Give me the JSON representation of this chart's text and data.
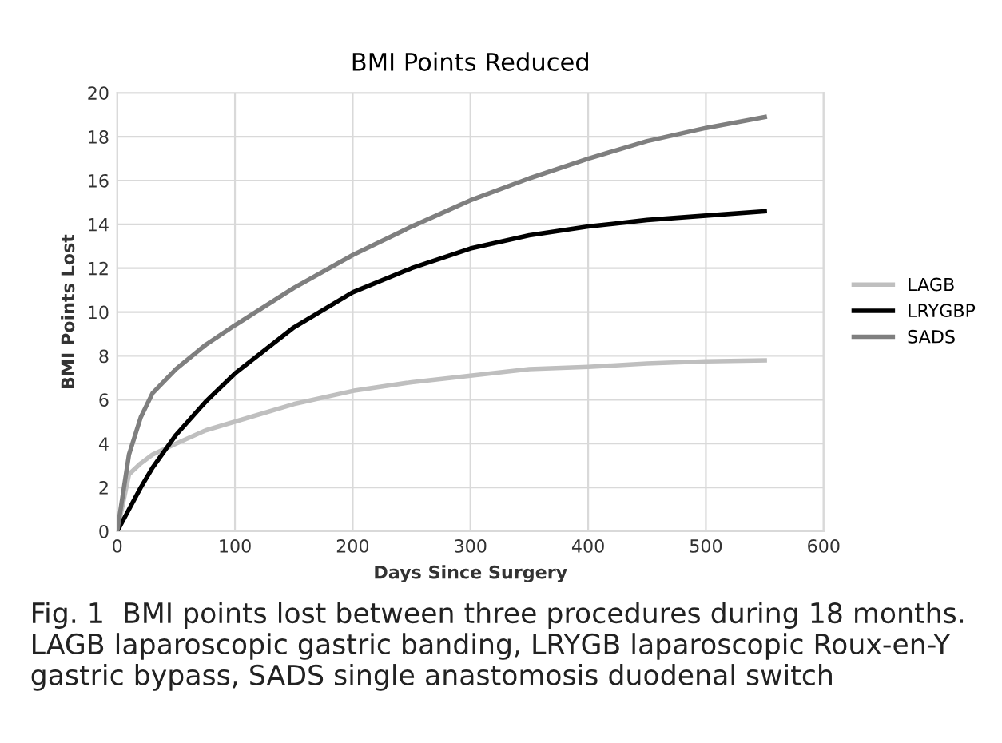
{
  "chart_data": {
    "type": "line",
    "title": "BMI Points Reduced",
    "xlabel": "Days Since Surgery",
    "ylabel": "BMI Points Lost",
    "x": [
      0,
      10,
      20,
      30,
      50,
      75,
      100,
      150,
      200,
      250,
      300,
      350,
      400,
      450,
      500,
      550
    ],
    "series": [
      {
        "name": "LAGB",
        "color": "#bfbfbf",
        "values": [
          0,
          2.6,
          3.1,
          3.5,
          4.0,
          4.6,
          5.0,
          5.8,
          6.4,
          6.8,
          7.1,
          7.4,
          7.5,
          7.65,
          7.75,
          7.8
        ]
      },
      {
        "name": "LRYGBP",
        "color": "#000000",
        "values": [
          0,
          1.0,
          2.0,
          2.9,
          4.4,
          5.9,
          7.2,
          9.3,
          10.9,
          12.0,
          12.9,
          13.5,
          13.9,
          14.2,
          14.4,
          14.6
        ]
      },
      {
        "name": "SADS",
        "color": "#7f7f7f",
        "values": [
          0,
          3.5,
          5.2,
          6.3,
          7.4,
          8.5,
          9.4,
          11.1,
          12.6,
          13.9,
          15.1,
          16.1,
          17.0,
          17.8,
          18.4,
          18.9
        ]
      }
    ],
    "xlim": [
      0,
      600
    ],
    "xticks": [
      0,
      100,
      200,
      300,
      400,
      500,
      600
    ],
    "ylim": [
      0,
      20
    ],
    "yticks": [
      0,
      2,
      4,
      6,
      8,
      10,
      12,
      14,
      16,
      18,
      20
    ],
    "grid": true,
    "legend": "right",
    "marker": "none",
    "line_style": "solid",
    "annotations": [
      "Fig. 1  BMI points lost between three procedures during 18 months. LAGB laparoscopic gastric banding, LRYGB laparoscopic Roux-en-Y gastric bypass, SADS single anastomosis duodenal switch"
    ]
  }
}
